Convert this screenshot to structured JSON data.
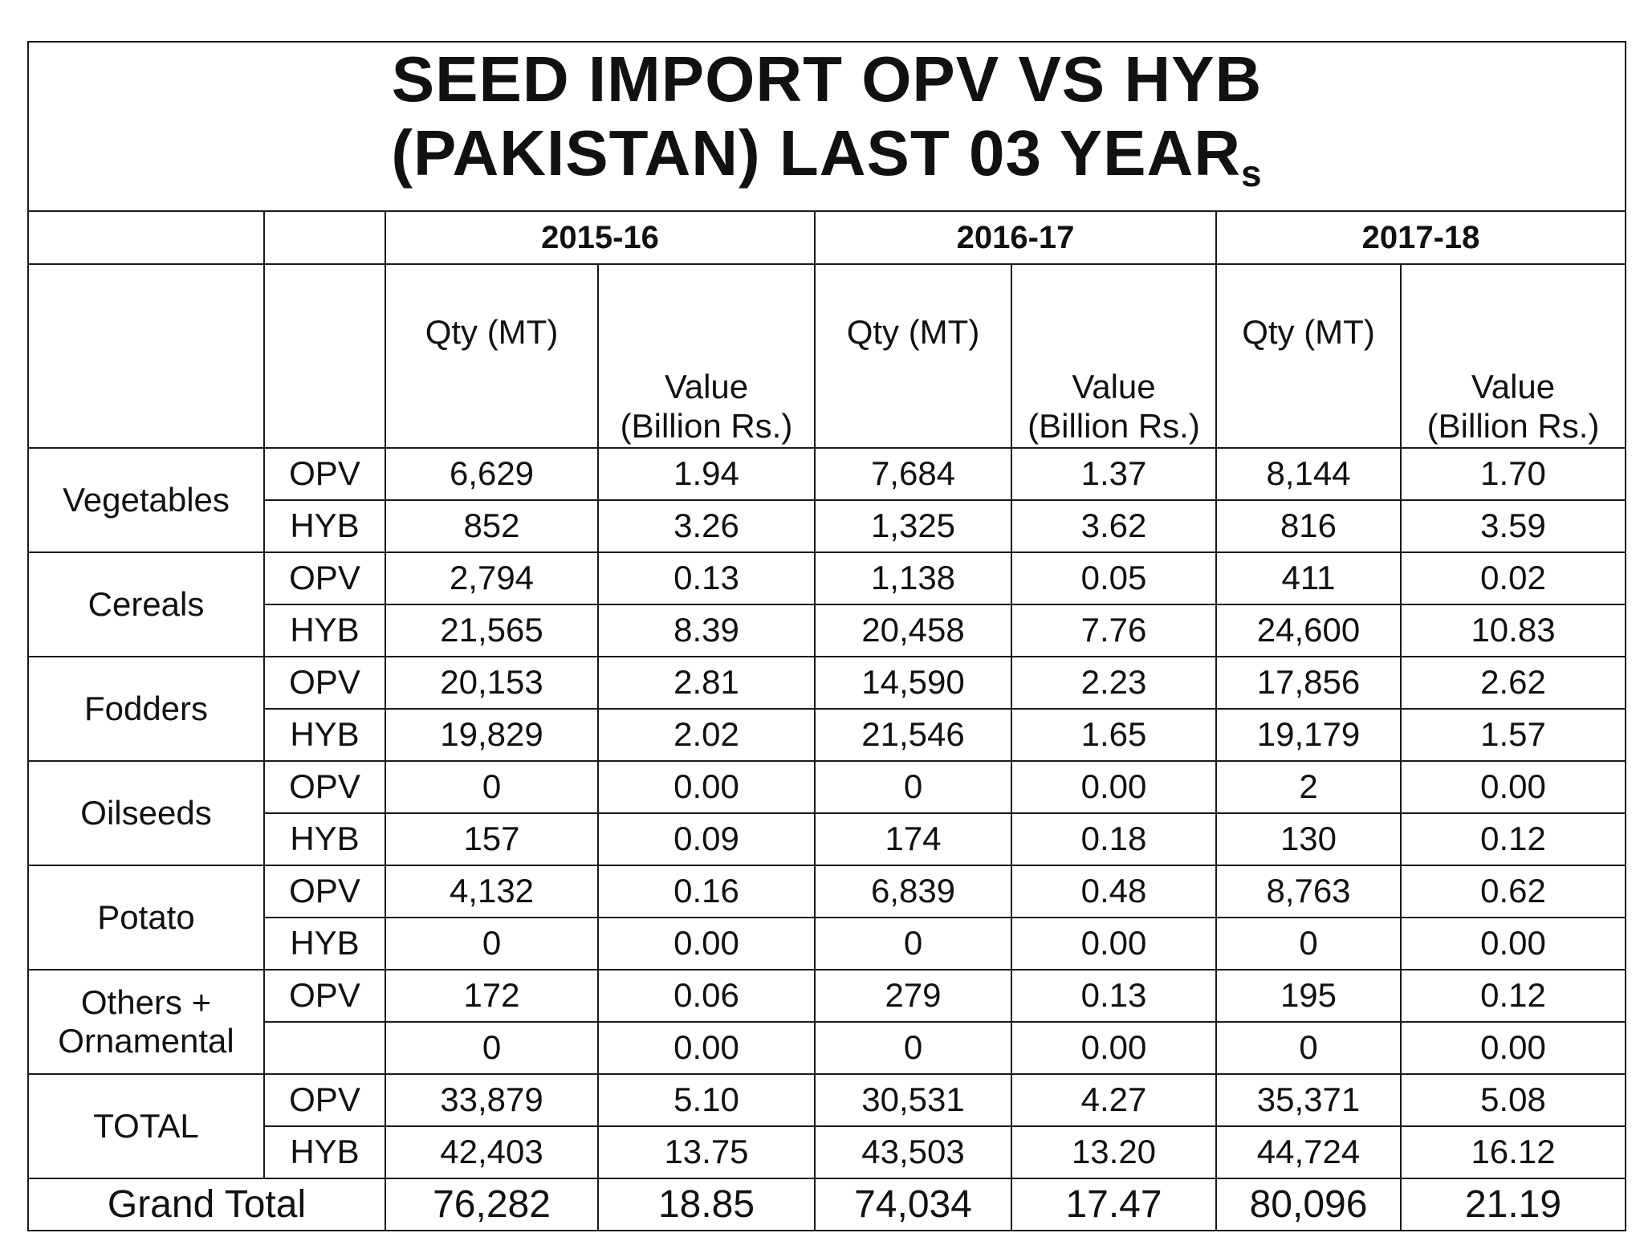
{
  "title": {
    "line1": "SEED IMPORT OPV VS HYB",
    "line2_main": "(PAKISTAN) LAST 03 YEAR",
    "line2_sub": "s"
  },
  "years": [
    "2015-16",
    "2016-17",
    "2017-18"
  ],
  "column_headers": {
    "qty": "Qty (MT)",
    "value_line1": "Value",
    "value_line2": "(Billion Rs.)"
  },
  "categories": [
    {
      "name": [
        "Vegetables"
      ],
      "rows": [
        {
          "type": "OPV",
          "values": [
            "6,629",
            "1.94",
            "7,684",
            "1.37",
            "8,144",
            "1.70"
          ]
        },
        {
          "type": "HYB",
          "values": [
            "852",
            "3.26",
            "1,325",
            "3.62",
            "816",
            "3.59"
          ]
        }
      ]
    },
    {
      "name": [
        "Cereals"
      ],
      "rows": [
        {
          "type": "OPV",
          "values": [
            "2,794",
            "0.13",
            "1,138",
            "0.05",
            "411",
            "0.02"
          ]
        },
        {
          "type": "HYB",
          "values": [
            "21,565",
            "8.39",
            "20,458",
            "7.76",
            "24,600",
            "10.83"
          ]
        }
      ]
    },
    {
      "name": [
        "Fodders"
      ],
      "rows": [
        {
          "type": "OPV",
          "values": [
            "20,153",
            "2.81",
            "14,590",
            "2.23",
            "17,856",
            "2.62"
          ]
        },
        {
          "type": "HYB",
          "values": [
            "19,829",
            "2.02",
            "21,546",
            "1.65",
            "19,179",
            "1.57"
          ]
        }
      ]
    },
    {
      "name": [
        "Oilseeds"
      ],
      "rows": [
        {
          "type": "OPV",
          "values": [
            "0",
            "0.00",
            "0",
            "0.00",
            "2",
            "0.00"
          ]
        },
        {
          "type": "HYB",
          "values": [
            "157",
            "0.09",
            "174",
            "0.18",
            "130",
            "0.12"
          ]
        }
      ]
    },
    {
      "name": [
        "Potato"
      ],
      "rows": [
        {
          "type": "OPV",
          "values": [
            "4,132",
            "0.16",
            "6,839",
            "0.48",
            "8,763",
            "0.62"
          ]
        },
        {
          "type": "HYB",
          "values": [
            "0",
            "0.00",
            "0",
            "0.00",
            "0",
            "0.00"
          ]
        }
      ]
    },
    {
      "name": [
        "Others +",
        "Ornamental"
      ],
      "rows": [
        {
          "type": "OPV",
          "values": [
            "172",
            "0.06",
            "279",
            "0.13",
            "195",
            "0.12"
          ]
        },
        {
          "type": "",
          "values": [
            "0",
            "0.00",
            "0",
            "0.00",
            "0",
            "0.00"
          ]
        }
      ]
    },
    {
      "name": [
        "TOTAL"
      ],
      "rows": [
        {
          "type": "OPV",
          "values": [
            "33,879",
            "5.10",
            "30,531",
            "4.27",
            "35,371",
            "5.08"
          ]
        },
        {
          "type": "HYB",
          "values": [
            "42,403",
            "13.75",
            "43,503",
            "13.20",
            "44,724",
            "16.12"
          ]
        }
      ]
    }
  ],
  "grand_total": {
    "label": "Grand Total",
    "values": [
      "76,282",
      "18.85",
      "74,034",
      "17.47",
      "80,096",
      "21.19"
    ]
  }
}
